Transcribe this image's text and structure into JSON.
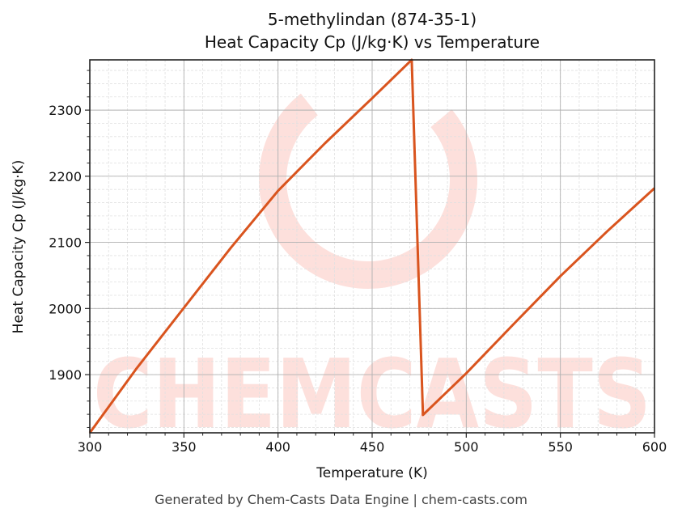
{
  "header": {
    "title_line1": "5-methylindan (874-35-1)",
    "title_line2": "Heat Capacity Cp (J/kg·K) vs Temperature"
  },
  "axes": {
    "xlabel": "Temperature (K)",
    "ylabel": "Heat Capacity Cp (J/kg·K)",
    "xticks": [
      "300",
      "350",
      "400",
      "450",
      "500",
      "550",
      "600"
    ],
    "yticks": [
      "1900",
      "2000",
      "2100",
      "2200",
      "2300"
    ]
  },
  "watermark": {
    "text": "CHEMCASTS",
    "color": "#fde0dc"
  },
  "footer": {
    "text": "Generated by Chem-Casts Data Engine | chem-casts.com"
  },
  "colors": {
    "line": "#d9541e",
    "grid_major": "#b0b0b0",
    "grid_minor": "#e0e0e0"
  },
  "chart_data": {
    "type": "line",
    "title": "5-methylindan (874-35-1) Heat Capacity Cp (J/kg·K) vs Temperature",
    "xlabel": "Temperature (K)",
    "ylabel": "Heat Capacity Cp (J/kg·K)",
    "xlim": [
      300,
      600
    ],
    "ylim": [
      1812,
      2376
    ],
    "grid": true,
    "legend": null,
    "series": [
      {
        "name": "Cp",
        "color": "#d9541e",
        "x": [
          300,
          325,
          350,
          375,
          400,
          425,
          450,
          471,
          477,
          500,
          525,
          550,
          575,
          600
        ],
        "y": [
          1812,
          1910,
          2001,
          2092,
          2178,
          2250,
          2318,
          2376,
          1839,
          1902,
          1976,
          2049,
          2117,
          2182
        ]
      }
    ]
  }
}
